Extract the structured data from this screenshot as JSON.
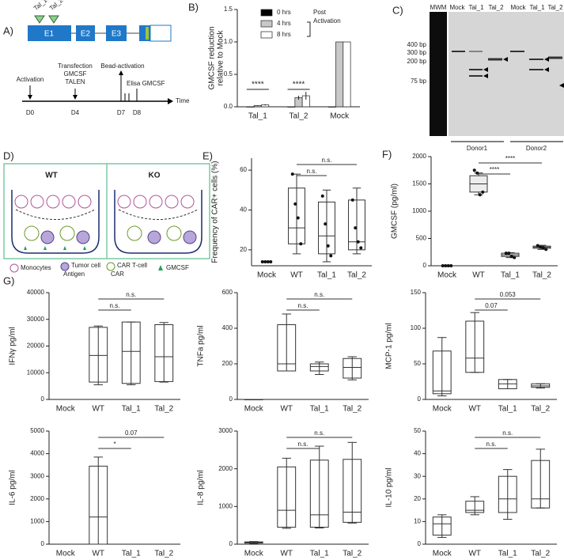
{
  "panel_a": {
    "label": "A)",
    "exons": [
      "E1",
      "E2",
      "E3"
    ],
    "talens": [
      "Tal_1",
      "Tal_2"
    ],
    "timeline": {
      "events": [
        "Activation",
        "Transfection",
        "GMCSF",
        "TALEN",
        "Bead-activation",
        "Elisa GMCSF"
      ],
      "days": [
        "D0",
        "D4",
        "D7",
        "D8"
      ],
      "axis_label": "Time"
    }
  },
  "panel_c": {
    "label": "C)",
    "lanes": [
      "MWM",
      "Mock",
      "Tal_1",
      "Tal_2",
      "Mock",
      "Tal_1",
      "Tal_2"
    ],
    "markers": [
      "400 bp",
      "300 bp",
      "200 bp",
      "75 bp"
    ],
    "donors": [
      "Donor1",
      "Donor2"
    ]
  },
  "panel_d": {
    "label": "D)",
    "conditions": [
      "WT",
      "KO"
    ],
    "legend": [
      "Monocytes",
      "Tumor cell",
      "Antigen",
      "CAR T-cell",
      "CAR",
      "GMCSF"
    ]
  },
  "panel_g": {
    "label": "G)"
  },
  "chart_data": [
    {
      "type": "bar",
      "panel": "B)",
      "ylabel": [
        "GMCSF reduction",
        "relative to Mock"
      ],
      "categories": [
        "Tal_1",
        "Tal_2",
        "Mock"
      ],
      "series": [
        {
          "name": "0 hrs",
          "color": "#000000",
          "values": [
            0,
            0,
            0
          ],
          "errors": [
            0,
            0,
            0
          ]
        },
        {
          "name": "4 hrs",
          "color": "#c8c8c8",
          "values": [
            0.02,
            0.14,
            1.0
          ],
          "errors": [
            0.005,
            0.03,
            0
          ]
        },
        {
          "name": "8 hrs",
          "color": "#ffffff",
          "values": [
            0.03,
            0.17,
            1.0
          ],
          "errors": [
            0.01,
            0.06,
            0
          ]
        }
      ],
      "legend_title": [
        "Post",
        "Activation"
      ],
      "ylim": [
        0,
        1.5
      ],
      "yticks": [
        {
          "value": 0,
          "label": "0.0"
        },
        0.5,
        {
          "value": 1,
          "label": "1.0"
        },
        1.5
      ],
      "annotations": [
        {
          "text": "****",
          "category": "Tal_1"
        },
        {
          "text": "****",
          "category": "Tal_2"
        }
      ]
    },
    {
      "type": "box",
      "panel": "E)",
      "ylabel": "Frequency of CAR+ cells (%)",
      "categories": [
        "Mock",
        "WT",
        "Tal_1",
        "Tal_2"
      ],
      "min": [
        null,
        18,
        14,
        18
      ],
      "q1": [
        null,
        23,
        18,
        20
      ],
      "median": [
        null,
        31,
        27,
        24
      ],
      "q3": [
        null,
        51,
        44,
        45
      ],
      "max": [
        null,
        58,
        50,
        51
      ],
      "points": [
        [
          14,
          14,
          14,
          14
        ],
        [
          58,
          43,
          36,
          23
        ],
        [
          47,
          33,
          22,
          17
        ],
        [
          45,
          31,
          24,
          21
        ]
      ],
      "ylim": [
        12,
        66
      ],
      "yticks": [
        20,
        40,
        60
      ],
      "box_fill": "none",
      "comparisons": [
        {
          "label": "n.s.",
          "from": "WT",
          "to": "Tal_1"
        },
        {
          "label": "n.s.",
          "from": "WT",
          "to": "Tal_2"
        }
      ]
    },
    {
      "type": "box",
      "panel": "F)",
      "ylabel": "GMCSF (pg/ml)",
      "categories": [
        "Mock",
        "WT",
        "Tal_1",
        "Tal_2"
      ],
      "min": [
        null,
        1300,
        150,
        300
      ],
      "q1": [
        null,
        1350,
        170,
        320
      ],
      "median": [
        null,
        1500,
        200,
        340
      ],
      "q3": [
        null,
        1650,
        230,
        360
      ],
      "max": [
        null,
        1700,
        240,
        375
      ],
      "points": [
        [
          0,
          0,
          0,
          0
        ],
        [
          1750,
          1700,
          1300,
          1350
        ],
        [
          230,
          230,
          170,
          150
        ],
        [
          370,
          340,
          330,
          300
        ]
      ],
      "ylim": [
        0,
        2000
      ],
      "yticks": [
        0,
        500,
        1000,
        1500,
        2000
      ],
      "box_fill": "#ececec",
      "comparisons": [
        {
          "label": "****",
          "from": "WT",
          "to": "Tal_1"
        },
        {
          "label": "****",
          "from": "WT",
          "to": "Tal_2"
        }
      ]
    },
    {
      "type": "box",
      "ylabel": "IFNγ pg/ml",
      "categories": [
        "Mock",
        "WT",
        "Tal_1",
        "Tal_2"
      ],
      "min": [
        null,
        5500,
        5500,
        6500
      ],
      "q1": [
        null,
        6500,
        6000,
        6700
      ],
      "median": [
        null,
        16500,
        18000,
        16000
      ],
      "q3": [
        null,
        27000,
        29000,
        28000
      ],
      "max": [
        null,
        27500,
        29000,
        28800
      ],
      "ylim": [
        0,
        40000
      ],
      "yticks": [
        0,
        10000,
        20000,
        30000,
        40000
      ],
      "box_fill": "none",
      "comparisons": [
        {
          "label": "n.s.",
          "from": "WT",
          "to": "Tal_1"
        },
        {
          "label": "n.s.",
          "from": "WT",
          "to": "Tal_2"
        }
      ]
    },
    {
      "type": "box",
      "ylabel": "TNFa pg/ml",
      "categories": [
        "Mock",
        "WT",
        "Tal_1",
        "Tal_2"
      ],
      "min": [
        0,
        160,
        140,
        110
      ],
      "q1": [
        0,
        160,
        160,
        120
      ],
      "median": [
        0,
        200,
        185,
        180
      ],
      "q3": [
        0,
        420,
        200,
        230
      ],
      "max": [
        0,
        480,
        210,
        240
      ],
      "ylim": [
        0,
        600
      ],
      "yticks": [
        0,
        200,
        400,
        600
      ],
      "box_fill": "none",
      "comparisons": [
        {
          "label": "n.s.",
          "from": "WT",
          "to": "Tal_1"
        },
        {
          "label": "n.s.",
          "from": "WT",
          "to": "Tal_2"
        }
      ]
    },
    {
      "type": "box",
      "ylabel": "MCP-1 pg/ml",
      "categories": [
        "Mock",
        "WT",
        "Tal_1",
        "Tal_2"
      ],
      "min": [
        5,
        38,
        15,
        16
      ],
      "q1": [
        8,
        38,
        15,
        17
      ],
      "median": [
        12,
        58,
        22,
        19
      ],
      "q3": [
        68,
        110,
        28,
        22
      ],
      "max": [
        87,
        122,
        28,
        22
      ],
      "ylim": [
        0,
        150
      ],
      "yticks": [
        0,
        50,
        100,
        150
      ],
      "box_fill": "none",
      "comparisons": [
        {
          "label": "0.07",
          "from": "WT",
          "to": "Tal_1"
        },
        {
          "label": "0.053",
          "from": "WT",
          "to": "Tal_2"
        }
      ]
    },
    {
      "type": "box",
      "ylabel": "IL-6 pg/ml",
      "categories": [
        "Mock",
        "WT",
        "Tal_1",
        "Tal_2"
      ],
      "min": [
        null,
        0,
        null,
        null
      ],
      "q1": [
        null,
        0,
        null,
        null
      ],
      "median": [
        null,
        1200,
        null,
        null
      ],
      "q3": [
        null,
        3450,
        null,
        null
      ],
      "max": [
        null,
        3850,
        null,
        null
      ],
      "ylim": [
        0,
        5000
      ],
      "yticks": [
        0,
        1000,
        2000,
        3000,
        4000,
        5000
      ],
      "box_fill": "none",
      "comparisons": [
        {
          "label": "*",
          "from": "WT",
          "to": "Tal_1"
        },
        {
          "label": "0.07",
          "from": "WT",
          "to": "Tal_2"
        }
      ]
    },
    {
      "type": "box",
      "ylabel": "IL-8 pg/ml",
      "categories": [
        "Mock",
        "WT",
        "Tal_1",
        "Tal_2"
      ],
      "min": [
        20,
        420,
        430,
        560
      ],
      "q1": [
        30,
        450,
        450,
        580
      ],
      "median": [
        50,
        900,
        780,
        850
      ],
      "q3": [
        60,
        2050,
        2230,
        2250
      ],
      "max": [
        70,
        2280,
        2600,
        2700
      ],
      "ylim": [
        0,
        3000
      ],
      "yticks": [
        0,
        1000,
        2000,
        3000
      ],
      "box_fill": "none",
      "comparisons": [
        {
          "label": "n.s.",
          "from": "WT",
          "to": "Tal_1"
        },
        {
          "label": "n.s.",
          "from": "WT",
          "to": "Tal_2"
        }
      ]
    },
    {
      "type": "box",
      "ylabel": "IL-10 pg/ml",
      "categories": [
        "Mock",
        "WT",
        "Tal_1",
        "Tal_2"
      ],
      "min": [
        3,
        13,
        11,
        16
      ],
      "q1": [
        4,
        14,
        14,
        16
      ],
      "median": [
        9,
        15,
        20,
        20
      ],
      "q3": [
        12,
        19,
        30,
        37
      ],
      "max": [
        13,
        21,
        33,
        42
      ],
      "ylim": [
        0,
        50
      ],
      "yticks": [
        0,
        10,
        20,
        30,
        40,
        50
      ],
      "box_fill": "none",
      "comparisons": [
        {
          "label": "n.s.",
          "from": "WT",
          "to": "Tal_1"
        },
        {
          "label": "n.s.",
          "from": "WT",
          "to": "Tal_2"
        }
      ]
    }
  ]
}
